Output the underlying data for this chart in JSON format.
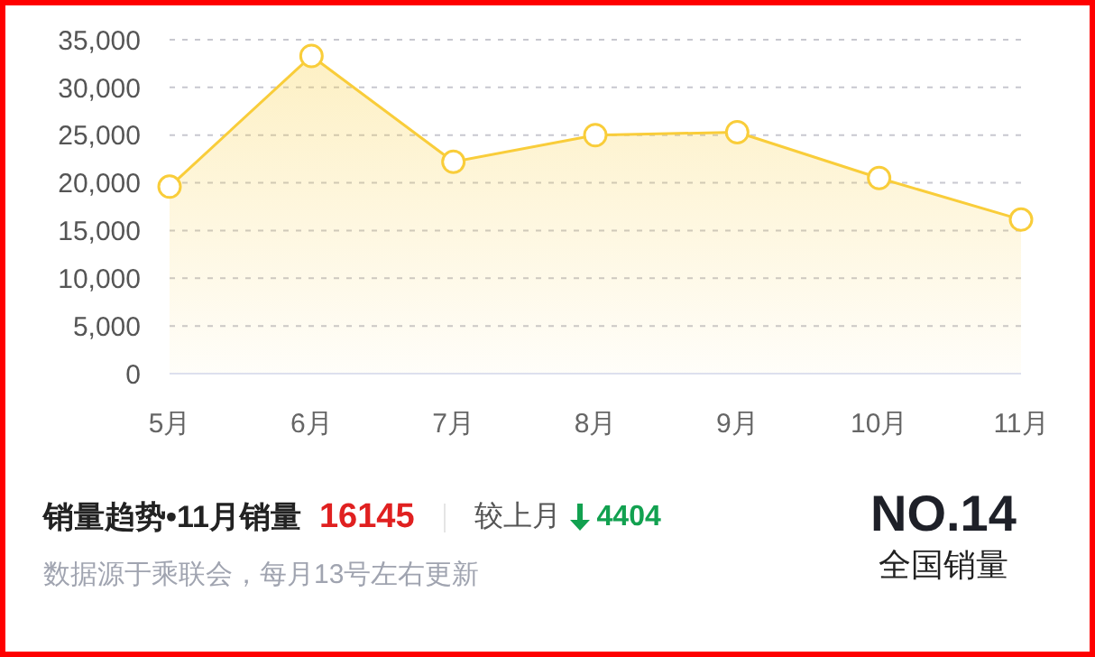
{
  "chart_data": {
    "type": "area",
    "categories": [
      "5月",
      "6月",
      "7月",
      "8月",
      "9月",
      "10月",
      "11月"
    ],
    "series": [
      {
        "color": "#f9cd3a",
        "values": [
          19600,
          33300,
          22200,
          25000,
          25300,
          20500,
          16145
        ]
      }
    ],
    "ylim": [
      0,
      35000
    ],
    "yticks": [
      {
        "value": 0,
        "label": "0"
      },
      {
        "value": 5000,
        "label": "5,000"
      },
      {
        "value": 10000,
        "label": "10,000"
      },
      {
        "value": 15000,
        "label": "15,000"
      },
      {
        "value": 20000,
        "label": "20,000"
      },
      {
        "value": 25000,
        "label": "25,000"
      },
      {
        "value": 30000,
        "label": "30,000"
      },
      {
        "value": 35000,
        "label": "35,000"
      }
    ],
    "grid": "y",
    "marker": "circle",
    "legend": false,
    "annotations": [
      "销量趋势•11月销量",
      "16145",
      "较上月",
      "4404",
      "NO.14",
      "全国销量",
      "数据源于乘联会，每月13号左右更新"
    ]
  }
}
